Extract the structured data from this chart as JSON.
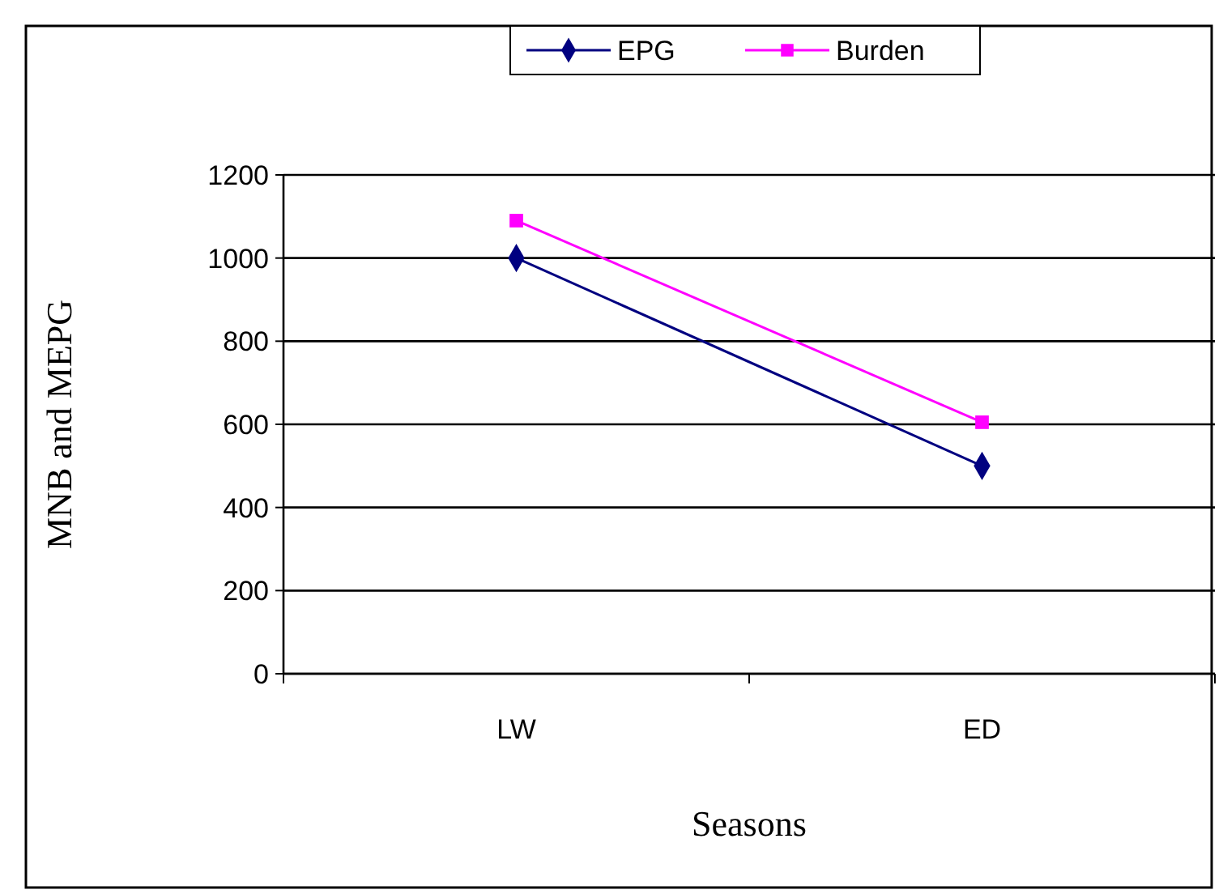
{
  "chart_data": {
    "type": "line",
    "xlabel": "Seasons",
    "ylabel": "MNB and MEPG",
    "categories": [
      "LW",
      "ED"
    ],
    "series": [
      {
        "name": "EPG",
        "color": "#000080",
        "values": [
          1000,
          500
        ],
        "marker": "diamond"
      },
      {
        "name": "Burden",
        "color": "#ff00ff",
        "values": [
          1090,
          605
        ],
        "marker": "square"
      }
    ],
    "ylim": [
      0,
      1200
    ],
    "yticks": [
      0,
      200,
      400,
      600,
      800,
      1000,
      1200
    ],
    "grid": "y",
    "legend": "top"
  }
}
